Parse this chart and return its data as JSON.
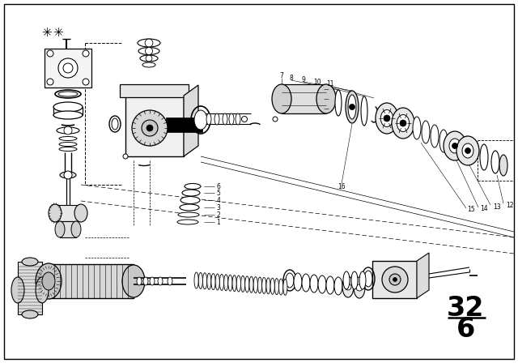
{
  "background_color": "#ffffff",
  "fig_width": 6.4,
  "fig_height": 4.48,
  "dpi": 100,
  "page_top": "32",
  "page_bottom": "6"
}
